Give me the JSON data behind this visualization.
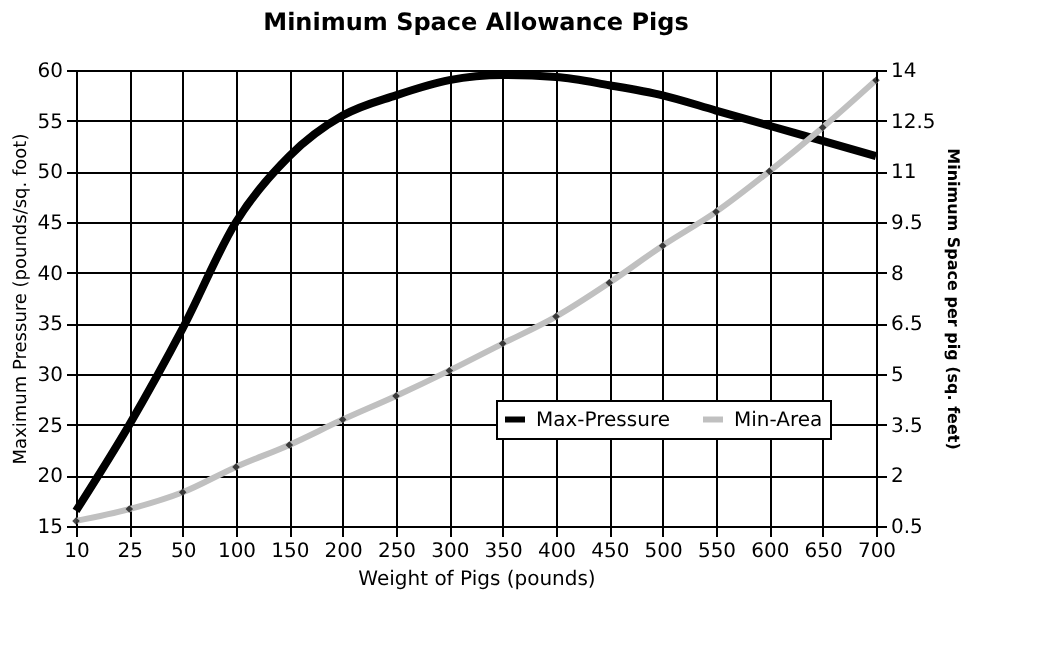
{
  "chart_data": {
    "type": "line",
    "title": "Minimum Space Allowance Pigs",
    "xlabel": "Weight of Pigs (pounds)",
    "ylabel": "Maximum Pressure (pounds/sq. foot)",
    "y2label": "Minimum Space per pig (sq. feet)",
    "categories": [
      "10",
      "25",
      "50",
      "100",
      "150",
      "200",
      "250",
      "300",
      "350",
      "400",
      "450",
      "500",
      "550",
      "600",
      "650",
      "700"
    ],
    "series": [
      {
        "name": "Max-Pressure",
        "color": "#000000",
        "marker": "none",
        "values": [
          16.5,
          25,
          34.5,
          45,
          51.5,
          55.5,
          57.5,
          59,
          59.5,
          59.3,
          58.5,
          57.5,
          56,
          54.5,
          53,
          51.5
        ]
      },
      {
        "name": "Min-Area",
        "color": "#c0c0c0",
        "axis": "y2",
        "marker": "diamond",
        "values": [
          0.65,
          1.0,
          1.5,
          2.25,
          2.9,
          3.65,
          4.35,
          5.1,
          5.9,
          6.7,
          7.7,
          8.8,
          9.8,
          11,
          12.3,
          13.7
        ]
      }
    ],
    "ylim": [
      15,
      60
    ],
    "yticks": [
      15,
      20,
      25,
      30,
      35,
      40,
      45,
      50,
      55,
      60
    ],
    "y2lim": [
      0.5,
      14
    ],
    "y2ticks": [
      0.5,
      2,
      3.5,
      5,
      6.5,
      8,
      9.5,
      11,
      12.5,
      14
    ],
    "grid": true,
    "legend": "bottom right"
  }
}
